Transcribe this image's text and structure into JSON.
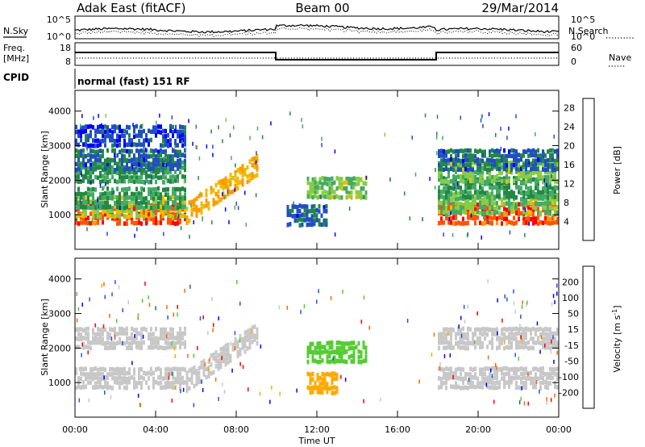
{
  "header": {
    "station": "Adak East (fitACF)",
    "beam": "Beam 00",
    "date": "29/Mar/2014"
  },
  "labels": {
    "nsky": "N.Sky",
    "nsearch": "N.Search",
    "freq_line1": "Freq.",
    "freq_line2": "[MHz]",
    "nave": "Nave",
    "cpid": "CPID",
    "cpid_value": "normal (fast) 151 RF"
  },
  "noise_axis": {
    "left_ticks": [
      "10^5",
      "10^0"
    ],
    "right_ticks": [
      "10^5",
      "10^0"
    ]
  },
  "freq_axis": {
    "left_ticks": [
      "18",
      "8"
    ],
    "right_ticks": [
      "60",
      "0"
    ]
  },
  "colors": {
    "power": [
      "#0000ff",
      "#2050c0",
      "#228844",
      "#44aa66",
      "#88cc44",
      "#eebb00",
      "#ff9900",
      "#ff5500",
      "#ff0000"
    ],
    "velocity": [
      "#0000ff",
      "#2255dd",
      "#228844",
      "#55cc33",
      "#c8c8c8",
      "#c8c8c8",
      "#ffaa00",
      "#ff6600",
      "#ff0000"
    ],
    "axis": "#000000"
  },
  "chart_data": [
    {
      "type": "heatmap",
      "name": "power-panel",
      "xlabel": "",
      "ylabel": "Slant Range [km]",
      "x_range_hours": [
        0,
        24
      ],
      "ylim": [
        0,
        4600
      ],
      "y_ticks": [
        "1000",
        "2000",
        "3000",
        "4000"
      ],
      "colorbar": {
        "label": "Power [dB]",
        "ticks": [
          "4",
          "8",
          "12",
          "16",
          "20",
          "24",
          "28"
        ],
        "range": [
          0,
          30
        ]
      },
      "features": [
        {
          "t_start": 0,
          "t_end": 5.5,
          "range_km": 1050,
          "value_db": 26
        },
        {
          "t_start": 0,
          "t_end": 5.5,
          "range_km": 1250,
          "value_db": 16
        },
        {
          "t_start": 0,
          "t_end": 5.5,
          "range_km": 1500,
          "value_db": 10
        },
        {
          "t_start": 0,
          "t_end": 5.5,
          "range_km": 2250,
          "value_db": 10
        },
        {
          "t_start": 0,
          "t_end": 5.5,
          "range_km": 2600,
          "value_db": 6
        },
        {
          "t_start": 0,
          "t_end": 5.5,
          "range_km": 3300,
          "value_db": 4
        },
        {
          "t_start": 5.5,
          "t_end": 9,
          "range_km": 1500,
          "value_db": 20
        },
        {
          "t_start": 10.5,
          "t_end": 12.5,
          "range_km": 1000,
          "value_db": 6
        },
        {
          "t_start": 11.5,
          "t_end": 14.5,
          "range_km": 1800,
          "value_db": 14
        },
        {
          "t_start": 18,
          "t_end": 24,
          "range_km": 1050,
          "value_db": 26
        },
        {
          "t_start": 18,
          "t_end": 24,
          "range_km": 1350,
          "value_db": 14
        },
        {
          "t_start": 18,
          "t_end": 24,
          "range_km": 1800,
          "value_db": 10
        },
        {
          "t_start": 18,
          "t_end": 24,
          "range_km": 2250,
          "value_db": 14
        },
        {
          "t_start": 18,
          "t_end": 24,
          "range_km": 2600,
          "value_db": 6
        }
      ]
    },
    {
      "type": "heatmap",
      "name": "velocity-panel",
      "xlabel": "Time UT",
      "ylabel": "Slant Range [km]",
      "x_range_hours": [
        0,
        24
      ],
      "x_ticks": [
        "00:00",
        "04:00",
        "08:00",
        "12:00",
        "16:00",
        "20:00",
        "00:00"
      ],
      "ylim": [
        0,
        4600
      ],
      "y_ticks": [
        "1000",
        "2000",
        "3000",
        "4000"
      ],
      "colorbar": {
        "label": "Velocity [m s-1]",
        "ticks": [
          "200",
          "100",
          "50",
          "15",
          "-15",
          "-50",
          "-100",
          "-200"
        ]
      },
      "features": [
        {
          "t_start": 0,
          "t_end": 5.5,
          "range_km": 1150,
          "value": 0
        },
        {
          "t_start": 0,
          "t_end": 5.5,
          "range_km": 2300,
          "value": 0
        },
        {
          "t_start": 5.5,
          "t_end": 9,
          "range_km": 1600,
          "value": 0
        },
        {
          "t_start": 11.5,
          "t_end": 14.5,
          "range_km": 1900,
          "value": 60
        },
        {
          "t_start": 11.5,
          "t_end": 13,
          "range_km": 1000,
          "value": -60
        },
        {
          "t_start": 18,
          "t_end": 24,
          "range_km": 1150,
          "value": 0
        },
        {
          "t_start": 18,
          "t_end": 24,
          "range_km": 2300,
          "value": 0
        }
      ]
    }
  ]
}
